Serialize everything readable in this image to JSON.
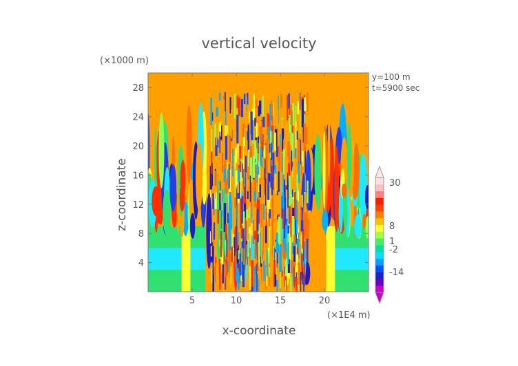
{
  "chart_data": {
    "type": "heatmap",
    "title": "vertical velocity",
    "xlabel": "x-coordinate",
    "ylabel": "z-coordinate",
    "x_unit": "(×1E4 m)",
    "y_unit": "(×1000 m)",
    "annotations": [
      "y=100 m",
      "t=5900 sec"
    ],
    "xlim": [
      0,
      25
    ],
    "ylim": [
      0,
      30
    ],
    "x_ticks": [
      5,
      10,
      15,
      20
    ],
    "y_ticks": [
      4,
      8,
      12,
      16,
      20,
      24,
      28
    ],
    "colorbar": {
      "labels": [
        30,
        8,
        1,
        -2,
        -14
      ],
      "colors": [
        "#c800c8",
        "#6a00c8",
        "#2020c8",
        "#0050ff",
        "#00a0ff",
        "#00e0ff",
        "#00e0a0",
        "#40f060",
        "#a0ff40",
        "#ffff30",
        "#ffc000",
        "#ff8000",
        "#ff4000",
        "#f02000",
        "#ff8080",
        "#ffc0c0",
        "#ffe0e0"
      ]
    },
    "grid": false
  }
}
